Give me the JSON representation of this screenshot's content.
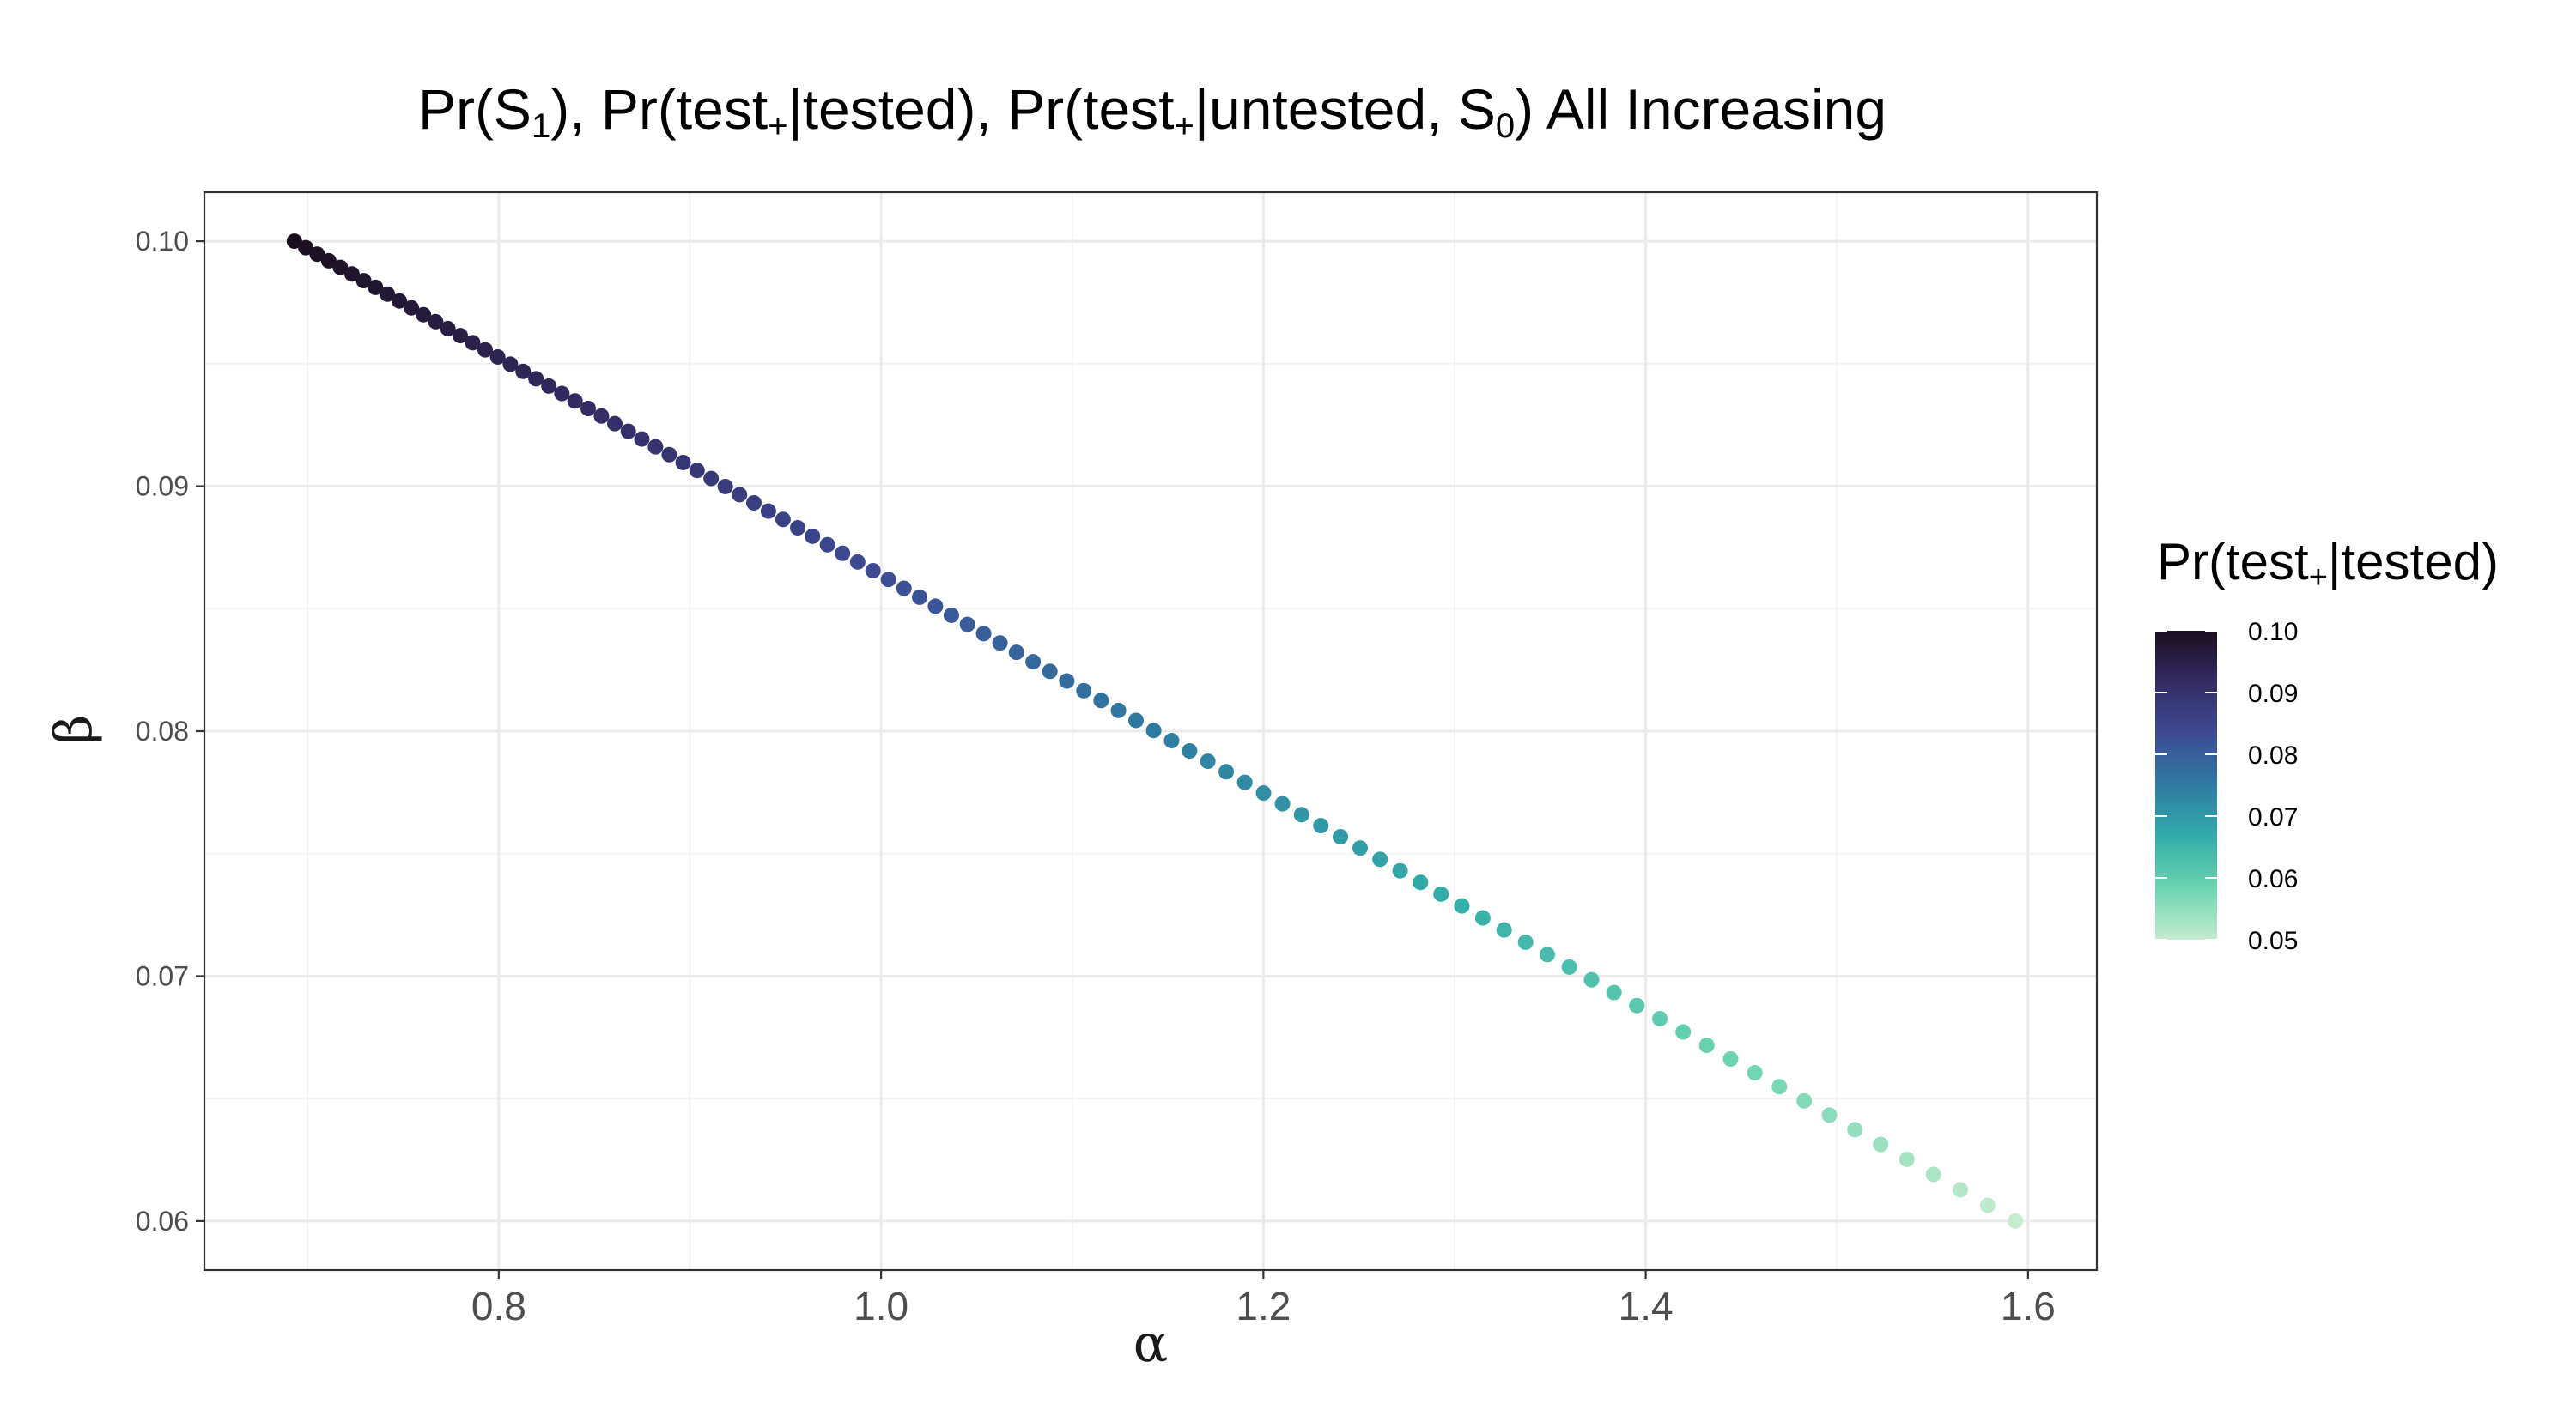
{
  "chart_data": {
    "type": "scatter",
    "title": {
      "parts": [
        {
          "text": "Pr(S",
          "kind": "normal"
        },
        {
          "text": "1",
          "kind": "sub"
        },
        {
          "text": "), Pr(test",
          "kind": "normal"
        },
        {
          "text": "+",
          "kind": "sub"
        },
        {
          "text": "|tested), Pr(test",
          "kind": "normal"
        },
        {
          "text": "+",
          "kind": "sub"
        },
        {
          "text": "|untested, S",
          "kind": "normal"
        },
        {
          "text": "0",
          "kind": "sub"
        },
        {
          "text": ") All Increasing",
          "kind": "normal"
        }
      ]
    },
    "xlabel": "α",
    "ylabel": "β",
    "xlim": [
      0.646,
      1.636
    ],
    "ylim": [
      0.058,
      0.102
    ],
    "x_ticks": [
      0.8,
      1.0,
      1.2,
      1.4,
      1.6
    ],
    "x_tick_labels": [
      "0.8",
      "1.0",
      "1.2",
      "1.4",
      "1.6"
    ],
    "y_ticks": [
      0.06,
      0.07,
      0.08,
      0.09,
      0.1
    ],
    "y_tick_labels": [
      "0.06",
      "0.07",
      "0.08",
      "0.09",
      "0.10"
    ],
    "grid": true,
    "points": {
      "count": 101,
      "x_range": [
        0.6931,
        1.5934
      ],
      "y_range": [
        0.1,
        0.06
      ],
      "color_range": [
        0.1,
        0.05
      ]
    },
    "legend": {
      "position": "right",
      "title": {
        "parts": [
          {
            "text": "Pr(test",
            "kind": "normal"
          },
          {
            "text": "+",
            "kind": "sub"
          },
          {
            "text": "|tested)",
            "kind": "normal"
          }
        ]
      },
      "limits": [
        0.05,
        0.1
      ],
      "ticks": [
        0.1,
        0.09,
        0.08,
        0.07,
        0.06,
        0.05
      ],
      "tick_labels": [
        "0.10",
        "0.09",
        "0.08",
        "0.07",
        "0.06",
        "0.05"
      ]
    },
    "colors": {
      "palette": [
        "#c6ecd0",
        "#6bd4b1",
        "#32ada9",
        "#2f7ba3",
        "#3d4b94",
        "#342b63",
        "#1b0f1f"
      ],
      "grid_major": "#ebebeb",
      "grid_minor": "#f3f3f3",
      "panel_border": "#333333"
    }
  }
}
